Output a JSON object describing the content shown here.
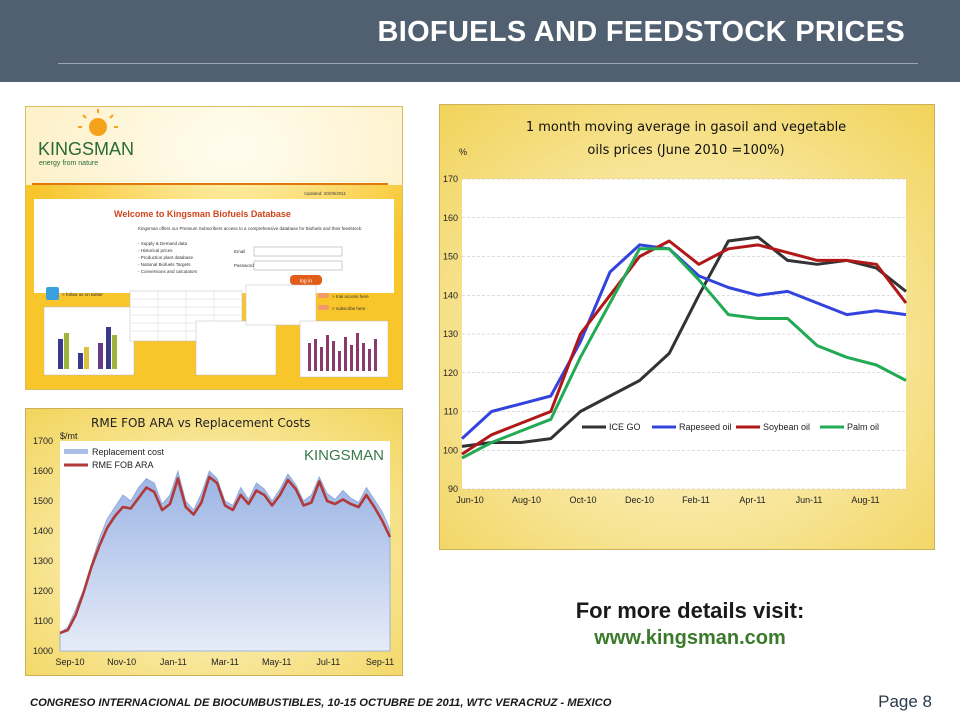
{
  "header": {
    "title": "BIOFUELS AND FEEDSTOCK PRICES"
  },
  "database_screenshot": {
    "logo_name": "KINGSMAN",
    "logo_tagline": "energy from nature",
    "updated": "Updated: 20/09/2011",
    "welcome": "Welcome to Kingsman Biofuels Database",
    "intro": "Kingsman offers our Premium Subscribers access to a comprehensive database for Biofuels and their feedstock:",
    "bullets": [
      "- Supply & Demand data",
      "- Historical prices",
      "- Production plant database",
      "- National Biofuels Targets",
      "- Conversions and calculators"
    ],
    "email_label": "Email",
    "password_label": "Password",
    "login_label": "log in",
    "twitter_label": "> follow us on twitter",
    "trial_label": "> trial access here",
    "subscribe_label": "> subscribe here"
  },
  "visit": {
    "title": "For more details visit:",
    "url": "www.kingsman.com"
  },
  "footer": {
    "text": "CONGRESO INTERNACIONAL DE BIOCUMBUSTIBLES, 10-15 OCTUBRE DE 2011, WTC VERACRUZ - MEXICO",
    "page": "Page 8"
  },
  "chart_data": [
    {
      "type": "area",
      "title": "RME FOB ARA vs Replacement Costs",
      "ylabel": "$/mt",
      "watermark": "KINGSMAN",
      "ylim": [
        1000,
        1700
      ],
      "yticks": [
        "1700",
        "1600",
        "1500",
        "1400",
        "1300",
        "1200",
        "1100",
        "1000"
      ],
      "xticks": [
        "Sep-10",
        "Nov-10",
        "Jan-11",
        "Mar-11",
        "May-11",
        "Jul-11",
        "Sep-11"
      ],
      "legend_placement": "top-left",
      "colors": {
        "Replacement cost": "#a9bfe8",
        "RME FOB ARA": "#b03a3a"
      },
      "series": [
        {
          "name": "Replacement cost",
          "values": [
            1060,
            1080,
            1140,
            1205,
            1290,
            1375,
            1440,
            1480,
            1520,
            1500,
            1545,
            1575,
            1560,
            1490,
            1520,
            1600,
            1500,
            1470,
            1525,
            1600,
            1575,
            1500,
            1485,
            1545,
            1505,
            1560,
            1540,
            1500,
            1540,
            1590,
            1555,
            1500,
            1520,
            1580,
            1525,
            1505,
            1535,
            1510,
            1495,
            1545,
            1505,
            1465,
            1405
          ]
        },
        {
          "name": "RME FOB ARA",
          "values": [
            1060,
            1070,
            1120,
            1195,
            1280,
            1350,
            1410,
            1450,
            1480,
            1475,
            1510,
            1545,
            1530,
            1470,
            1490,
            1575,
            1480,
            1455,
            1495,
            1580,
            1560,
            1485,
            1470,
            1520,
            1490,
            1535,
            1520,
            1485,
            1520,
            1570,
            1540,
            1485,
            1495,
            1565,
            1500,
            1490,
            1505,
            1490,
            1480,
            1520,
            1480,
            1435,
            1380
          ]
        }
      ]
    },
    {
      "type": "line",
      "title": "1 month moving average in gasoil and vegetable oils prices (June 2010 =100%)",
      "ylabel": "%",
      "ylim": [
        90,
        170
      ],
      "yticks": [
        "170",
        "160",
        "150",
        "140",
        "130",
        "120",
        "110",
        "100",
        "90"
      ],
      "xticks": [
        "Jun-10",
        "Aug-10",
        "Oct-10",
        "Dec-10",
        "Feb-11",
        "Apr-11",
        "Jun-11",
        "Aug-11"
      ],
      "grid": true,
      "legend_placement": "bottom-right",
      "x": [
        "Jun-10",
        "Jul-10",
        "Aug-10",
        "Sep-10",
        "Oct-10",
        "Nov-10",
        "Dec-10",
        "Jan-11",
        "Feb-11",
        "Mar-11",
        "Apr-11",
        "May-11",
        "Jun-11",
        "Jul-11",
        "Aug-11",
        "Sep-11"
      ],
      "series": [
        {
          "name": "ICE GO",
          "color": "#333333",
          "values": [
            101,
            102,
            102,
            103,
            110,
            114,
            118,
            125,
            140,
            154,
            155,
            149,
            148,
            149,
            147,
            141
          ]
        },
        {
          "name": "Rapeseed oil",
          "color": "#3344dd",
          "values": [
            103,
            110,
            112,
            114,
            128,
            146,
            153,
            152,
            145,
            142,
            140,
            141,
            138,
            135,
            136,
            135
          ]
        },
        {
          "name": "Soybean oil",
          "color": "#b01818",
          "values": [
            99,
            104,
            107,
            110,
            130,
            140,
            150,
            154,
            148,
            152,
            153,
            151,
            149,
            149,
            148,
            138
          ]
        },
        {
          "name": "Palm oil",
          "color": "#22aa55",
          "values": [
            98,
            102,
            105,
            108,
            124,
            138,
            152,
            152,
            144,
            135,
            134,
            134,
            127,
            124,
            122,
            118
          ]
        }
      ]
    }
  ]
}
